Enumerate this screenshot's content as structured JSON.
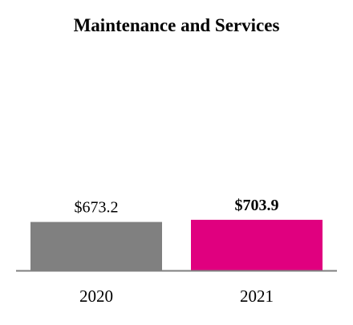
{
  "chart_data": {
    "type": "bar",
    "title": "Maintenance and Services",
    "categories": [
      "2020",
      "2021"
    ],
    "values": [
      673.2,
      703.9
    ],
    "value_labels": [
      "$673.2",
      "$703.9"
    ],
    "emphasized": [
      false,
      true
    ],
    "colors": [
      "#808080",
      "#e0007f"
    ],
    "axis_color": "#7f7f7f",
    "ylim": [
      0,
      3200
    ],
    "grid": false,
    "legend": "none",
    "xlabel": "",
    "ylabel": ""
  }
}
